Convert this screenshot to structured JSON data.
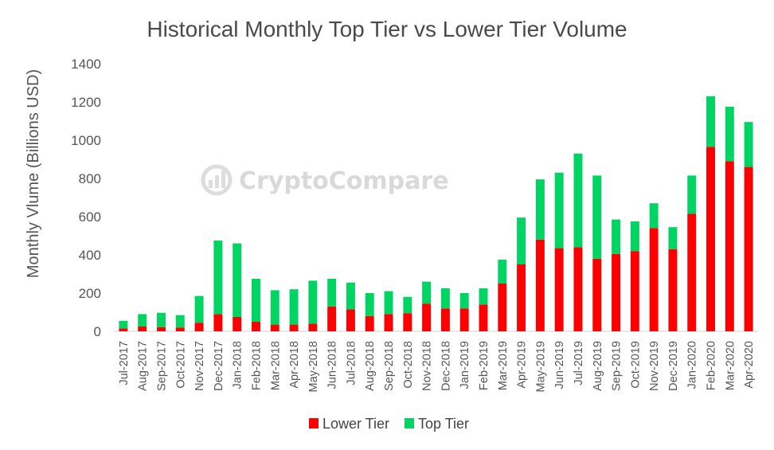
{
  "chart_data": {
    "type": "bar",
    "stacked": true,
    "title": "Historical Monthly Top Tier vs Lower Tier Volume",
    "xlabel": "",
    "ylabel": "Monthly Vlume (Billions USD)",
    "ylim": [
      0,
      1400
    ],
    "yticks": [
      "0",
      "200",
      "400",
      "600",
      "800",
      "1000",
      "1200",
      "1400"
    ],
    "grid": false,
    "legend_position": "bottom",
    "categories": [
      "Jul-2017",
      "Aug-2017",
      "Sep-2017",
      "Oct-2017",
      "Nov-2017",
      "Dec-2017",
      "Jan-2018",
      "Feb-2018",
      "Mar-2018",
      "Apr-2018",
      "May-2018",
      "Jun-2018",
      "Jul-2018",
      "Aug-2018",
      "Sep-2018",
      "Oct-2018",
      "Nov-2018",
      "Dec-2018",
      "Jan-2019",
      "Feb-2019",
      "Mar-2019",
      "Apr-2019",
      "May-2019",
      "Jun-2019",
      "Jul-2019",
      "Aug-2019",
      "Sep-2019",
      "Oct-2019",
      "Nov-2019",
      "Dec-2019",
      "Jan-2020",
      "Feb-2020",
      "Mar-2020",
      "Apr-2020"
    ],
    "series": [
      {
        "name": "Lower Tier",
        "color": "#ff0000",
        "values": [
          15,
          25,
          22,
          20,
          45,
          90,
          75,
          50,
          35,
          35,
          40,
          130,
          115,
          80,
          90,
          95,
          145,
          120,
          120,
          140,
          250,
          350,
          480,
          435,
          440,
          380,
          405,
          420,
          540,
          430,
          615,
          965,
          890,
          860
        ]
      },
      {
        "name": "Top Tier",
        "color": "#00d563",
        "values": [
          40,
          65,
          75,
          65,
          140,
          385,
          385,
          225,
          180,
          185,
          225,
          145,
          140,
          120,
          120,
          85,
          115,
          105,
          80,
          85,
          125,
          245,
          315,
          395,
          490,
          435,
          180,
          155,
          130,
          115,
          200,
          265,
          285,
          235
        ]
      }
    ]
  },
  "watermark": {
    "text": "CryptoCompare",
    "icon": "cryptocompare-logo-icon"
  }
}
